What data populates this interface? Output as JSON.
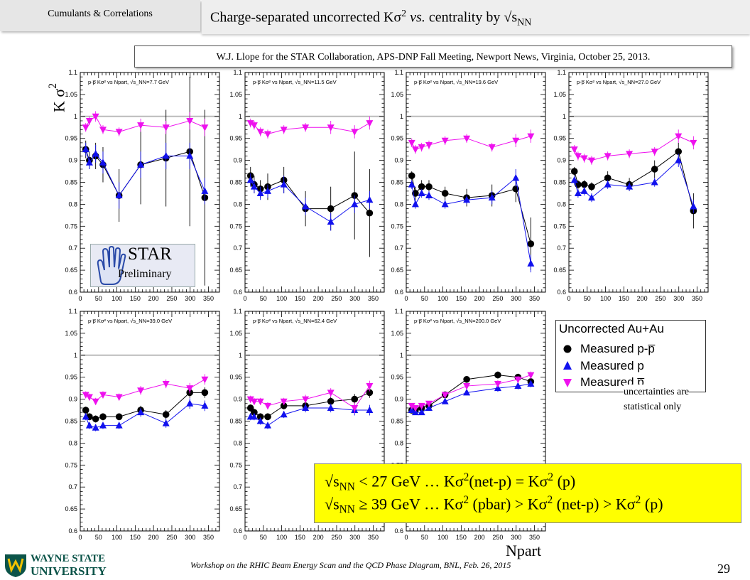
{
  "header": {
    "tab_label": "Cumulants & Correlations",
    "title_main": "Charge-separated uncorrected K",
    "title_sigma": "σ",
    "title_sup": "2",
    "title_vs": "vs.",
    "title_rest": " centrality by √s",
    "title_sub": "NN"
  },
  "citation": "W.J. Llope for the STAR Collaboration, APS-DNP Fall Meeting, Newport News, Virginia, October 25, 2013.",
  "axes": {
    "ylabel_k": "K",
    "ylabel_sigma": "σ",
    "ylabel_sup": "2",
    "xlabel": "Npart"
  },
  "star_badge": {
    "main": "STAR",
    "sub": "Preliminary"
  },
  "legend": {
    "title": "Uncorrected Au+Au",
    "entries": [
      "Measured p-p̅",
      "Measured p",
      "Measured p̅"
    ],
    "note_line1": "uncertainties are",
    "note_line2": "statistical only"
  },
  "summary": {
    "line1_a": "√s",
    "line1_sub": "NN",
    "line1_b": " < 27 GeV … Kσ",
    "line1_sup1": "2",
    "line1_c": "(net-p) = Kσ",
    "line1_sup2": "2",
    "line1_d": " (p)",
    "line2_a": "√s",
    "line2_sub": "NN",
    "line2_b": " ≥ 39 GeV … Kσ",
    "line2_sup1": "2",
    "line2_c": " (pbar) > Kσ",
    "line2_sup2": "2",
    "line2_d": " (net-p) > Kσ",
    "line2_sup3": "2",
    "line2_e": " (p)"
  },
  "footer": {
    "workshop": "Workshop on the RHIC Beam Energy Scan and the QCD Phase Diagram, BNL, Feb. 26, 2015",
    "page": "29",
    "logo_line1": "WAYNE STATE",
    "logo_line2": "UNIVERSITY"
  },
  "colors": {
    "netp": "#000000",
    "p": "#1111ee",
    "pbar": "#ee11ee",
    "baseline": "#bbbbbb"
  },
  "chart_data": [
    {
      "type": "scatter",
      "title": "p-p̅ Kσ² vs Npart, √s_NN = 7.7 GeV",
      "energy": "7.7",
      "xlim": [
        0,
        380
      ],
      "ylim": [
        0.6,
        1.1
      ],
      "xticks": [
        0,
        50,
        100,
        150,
        200,
        250,
        300,
        350
      ],
      "yticks": [
        0.6,
        0.65,
        0.7,
        0.75,
        0.8,
        0.85,
        0.9,
        0.95,
        1,
        1.05,
        1.1
      ],
      "x": [
        15,
        25,
        42,
        62,
        106,
        165,
        234,
        299,
        340
      ],
      "series": [
        {
          "name": "Measured p-p̅",
          "values": [
            0.925,
            0.9,
            0.91,
            0.89,
            0.82,
            0.89,
            0.905,
            0.92,
            0.815
          ],
          "err": [
            0.02,
            0.02,
            0.03,
            0.04,
            0.06,
            0.09,
            0.11,
            0.17,
            0.2
          ]
        },
        {
          "name": "Measured p",
          "values": [
            0.925,
            0.895,
            0.915,
            0.895,
            0.82,
            0.89,
            0.91,
            0.91,
            0.83
          ],
          "err": [
            0.015,
            0.015,
            0.02,
            0.025,
            0.03,
            0.03,
            0.03,
            0.03,
            0.03
          ]
        },
        {
          "name": "Measured p̅",
          "values": [
            0.975,
            0.99,
            1.0,
            0.97,
            0.965,
            0.98,
            0.975,
            0.99,
            0.975
          ],
          "err": [
            0.01,
            0.01,
            0.012,
            0.01,
            0.01,
            0.015,
            0.015,
            0.02,
            0.02
          ]
        }
      ]
    },
    {
      "type": "scatter",
      "title": "p-p̅ Kσ² vs Npart, √s_NN = 11.5 GeV",
      "energy": "11.5",
      "xlim": [
        0,
        380
      ],
      "ylim": [
        0.6,
        1.1
      ],
      "xticks": [
        0,
        50,
        100,
        150,
        200,
        250,
        300,
        350
      ],
      "yticks": [
        0.6,
        0.65,
        0.7,
        0.75,
        0.8,
        0.85,
        0.9,
        0.95,
        1,
        1.05,
        1.1
      ],
      "x": [
        15,
        25,
        42,
        62,
        106,
        165,
        234,
        299,
        340
      ],
      "series": [
        {
          "name": "Measured p-p̅",
          "values": [
            0.865,
            0.845,
            0.835,
            0.84,
            0.855,
            0.79,
            0.79,
            0.82,
            0.78
          ],
          "err": [
            0.02,
            0.02,
            0.02,
            0.03,
            0.03,
            0.04,
            0.05,
            0.1,
            0.1
          ]
        },
        {
          "name": "Measured p",
          "values": [
            0.855,
            0.84,
            0.825,
            0.83,
            0.845,
            0.795,
            0.76,
            0.8,
            0.81
          ],
          "err": [
            0.015,
            0.015,
            0.015,
            0.015,
            0.02,
            0.02,
            0.02,
            0.02,
            0.02
          ]
        },
        {
          "name": "Measured p̅",
          "values": [
            0.985,
            0.98,
            0.965,
            0.96,
            0.97,
            0.975,
            0.975,
            0.965,
            0.985
          ],
          "err": [
            0.01,
            0.01,
            0.01,
            0.01,
            0.01,
            0.01,
            0.015,
            0.015,
            0.015
          ]
        }
      ]
    },
    {
      "type": "scatter",
      "title": "p-p̅ Kσ² vs Npart, √s_NN = 19.6 GeV",
      "energy": "19.6",
      "xlim": [
        0,
        380
      ],
      "ylim": [
        0.6,
        1.1
      ],
      "xticks": [
        0,
        50,
        100,
        150,
        200,
        250,
        300,
        350
      ],
      "yticks": [
        0.6,
        0.65,
        0.7,
        0.75,
        0.8,
        0.85,
        0.9,
        0.95,
        1,
        1.05,
        1.1
      ],
      "x": [
        15,
        25,
        42,
        62,
        106,
        165,
        234,
        299,
        340
      ],
      "series": [
        {
          "name": "Measured p-p̅",
          "values": [
            0.865,
            0.825,
            0.84,
            0.84,
            0.825,
            0.815,
            0.82,
            0.835,
            0.71
          ],
          "err": [
            0.01,
            0.015,
            0.015,
            0.015,
            0.015,
            0.02,
            0.025,
            0.03,
            0.06
          ]
        },
        {
          "name": "Measured p",
          "values": [
            0.845,
            0.8,
            0.825,
            0.82,
            0.8,
            0.81,
            0.815,
            0.86,
            0.665
          ],
          "err": [
            0.01,
            0.01,
            0.01,
            0.01,
            0.01,
            0.01,
            0.015,
            0.02,
            0.02
          ]
        },
        {
          "name": "Measured p̅",
          "values": [
            0.94,
            0.925,
            0.93,
            0.935,
            0.945,
            0.95,
            0.93,
            0.945,
            0.955
          ],
          "err": [
            0.01,
            0.01,
            0.01,
            0.01,
            0.01,
            0.01,
            0.01,
            0.015,
            0.015
          ]
        }
      ]
    },
    {
      "type": "scatter",
      "title": "p-p̅ Kσ² vs Npart, √s_NN = 27.0 GeV",
      "energy": "27.0",
      "xlim": [
        0,
        380
      ],
      "ylim": [
        0.6,
        1.1
      ],
      "xticks": [
        0,
        50,
        100,
        150,
        200,
        250,
        300,
        350
      ],
      "yticks": [
        0.6,
        0.65,
        0.7,
        0.75,
        0.8,
        0.85,
        0.9,
        0.95,
        1,
        1.05,
        1.1
      ],
      "x": [
        15,
        25,
        42,
        62,
        106,
        165,
        234,
        299,
        340
      ],
      "series": [
        {
          "name": "Measured p-p̅",
          "values": [
            0.875,
            0.845,
            0.845,
            0.84,
            0.86,
            0.845,
            0.88,
            0.92,
            0.785
          ],
          "err": [
            0.01,
            0.01,
            0.01,
            0.01,
            0.015,
            0.015,
            0.02,
            0.02,
            0.04
          ]
        },
        {
          "name": "Measured p",
          "values": [
            0.855,
            0.825,
            0.83,
            0.815,
            0.845,
            0.84,
            0.85,
            0.9,
            0.795
          ],
          "err": [
            0.01,
            0.01,
            0.01,
            0.01,
            0.01,
            0.01,
            0.01,
            0.015,
            0.015
          ]
        },
        {
          "name": "Measured p̅",
          "values": [
            0.925,
            0.91,
            0.905,
            0.9,
            0.91,
            0.915,
            0.92,
            0.955,
            0.94
          ],
          "err": [
            0.01,
            0.01,
            0.01,
            0.01,
            0.01,
            0.01,
            0.01,
            0.015,
            0.015
          ]
        }
      ]
    },
    {
      "type": "scatter",
      "title": "p-p̅ Kσ² vs Npart, √s_NN = 39.0 GeV",
      "energy": "39.0",
      "xlim": [
        0,
        380
      ],
      "ylim": [
        0.6,
        1.1
      ],
      "xticks": [
        0,
        50,
        100,
        150,
        200,
        250,
        300,
        350
      ],
      "yticks": [
        0.6,
        0.65,
        0.7,
        0.75,
        0.8,
        0.85,
        0.9,
        0.95,
        1,
        1.05,
        1.1
      ],
      "x": [
        15,
        25,
        42,
        62,
        106,
        165,
        234,
        299,
        340
      ],
      "series": [
        {
          "name": "Measured p-p̅",
          "values": [
            0.875,
            0.86,
            0.855,
            0.86,
            0.86,
            0.875,
            0.865,
            0.915,
            0.915
          ],
          "err": [
            0.008,
            0.008,
            0.008,
            0.008,
            0.008,
            0.01,
            0.01,
            0.012,
            0.012
          ]
        },
        {
          "name": "Measured p",
          "values": [
            0.86,
            0.84,
            0.835,
            0.84,
            0.84,
            0.87,
            0.845,
            0.89,
            0.885
          ],
          "err": [
            0.008,
            0.008,
            0.008,
            0.008,
            0.008,
            0.01,
            0.01,
            0.012,
            0.012
          ]
        },
        {
          "name": "Measured p̅",
          "values": [
            0.91,
            0.905,
            0.895,
            0.91,
            0.905,
            0.92,
            0.935,
            0.925,
            0.945
          ],
          "err": [
            0.008,
            0.008,
            0.008,
            0.008,
            0.008,
            0.01,
            0.01,
            0.012,
            0.012
          ]
        }
      ]
    },
    {
      "type": "scatter",
      "title": "p-p̅ Kσ² vs Npart, √s_NN = 62.4 GeV",
      "energy": "62.4",
      "xlim": [
        0,
        380
      ],
      "ylim": [
        0.6,
        1.1
      ],
      "xticks": [
        0,
        50,
        100,
        150,
        200,
        250,
        300,
        350
      ],
      "yticks": [
        0.6,
        0.65,
        0.7,
        0.75,
        0.8,
        0.85,
        0.9,
        0.95,
        1,
        1.05,
        1.1
      ],
      "x": [
        15,
        25,
        42,
        62,
        106,
        165,
        234,
        299,
        340
      ],
      "series": [
        {
          "name": "Measured p-p̅",
          "values": [
            0.88,
            0.87,
            0.86,
            0.86,
            0.885,
            0.885,
            0.895,
            0.9,
            0.915
          ],
          "err": [
            0.008,
            0.008,
            0.008,
            0.008,
            0.008,
            0.01,
            0.01,
            0.012,
            0.012
          ]
        },
        {
          "name": "Measured p",
          "values": [
            0.86,
            0.86,
            0.85,
            0.84,
            0.865,
            0.88,
            0.88,
            0.875,
            0.875
          ],
          "err": [
            0.008,
            0.008,
            0.008,
            0.008,
            0.008,
            0.01,
            0.01,
            0.012,
            0.012
          ]
        },
        {
          "name": "Measured p̅",
          "values": [
            0.9,
            0.895,
            0.895,
            0.885,
            0.895,
            0.9,
            0.915,
            0.88,
            0.93
          ],
          "err": [
            0.008,
            0.008,
            0.008,
            0.008,
            0.008,
            0.01,
            0.01,
            0.012,
            0.012
          ]
        }
      ]
    },
    {
      "type": "scatter",
      "title": "p-p̅ Kσ² vs Npart, √s_NN = 200.0 GeV",
      "energy": "200.0",
      "xlim": [
        0,
        380
      ],
      "ylim": [
        0.6,
        1.1
      ],
      "xticks": [
        0,
        50,
        100,
        150,
        200,
        250,
        300,
        350
      ],
      "yticks": [
        0.6,
        0.65,
        0.7,
        0.75,
        0.8,
        0.85,
        0.9,
        0.95,
        1,
        1.05,
        1.1
      ],
      "x": [
        15,
        25,
        42,
        62,
        106,
        165,
        250,
        305,
        340
      ],
      "series": [
        {
          "name": "Measured p-p̅",
          "values": [
            0.875,
            0.875,
            0.88,
            0.885,
            0.91,
            0.945,
            0.955,
            0.95,
            0.94
          ],
          "err": [
            0.005,
            0.005,
            0.005,
            0.005,
            0.006,
            0.006,
            0.008,
            0.008,
            0.008
          ]
        },
        {
          "name": "Measured p",
          "values": [
            0.875,
            0.87,
            0.87,
            0.88,
            0.895,
            0.915,
            0.925,
            0.93,
            0.935
          ],
          "err": [
            0.005,
            0.005,
            0.005,
            0.005,
            0.006,
            0.006,
            0.008,
            0.008,
            0.008
          ]
        },
        {
          "name": "Measured p̅",
          "values": [
            0.885,
            0.88,
            0.885,
            0.89,
            0.91,
            0.93,
            0.935,
            0.945,
            0.955
          ],
          "err": [
            0.005,
            0.005,
            0.005,
            0.005,
            0.006,
            0.006,
            0.008,
            0.008,
            0.008
          ]
        }
      ]
    }
  ]
}
